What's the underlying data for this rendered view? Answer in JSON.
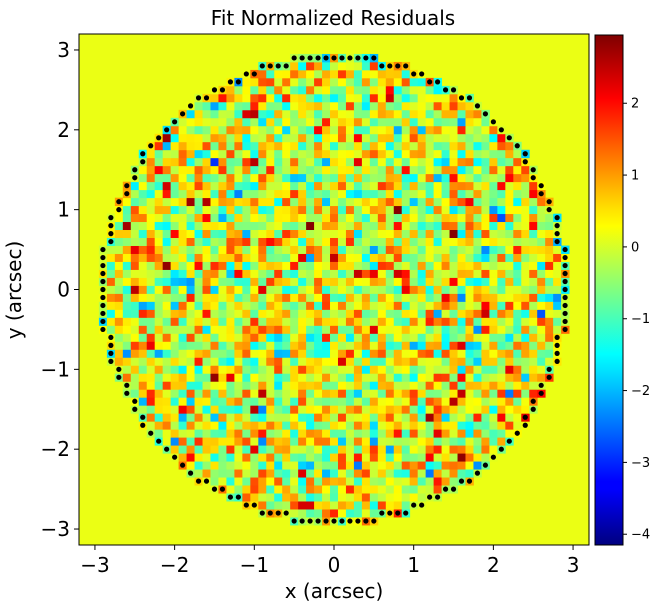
{
  "chart_data": {
    "type": "heatmap",
    "title": "Fit Normalized Residuals",
    "xlabel": "x (arcsec)",
    "ylabel": "y (arcsec)",
    "xlim": [
      -3.2,
      3.2
    ],
    "ylim": [
      -3.2,
      3.2
    ],
    "xticks": [
      -3,
      -2,
      -1,
      0,
      1,
      2,
      3
    ],
    "yticks": [
      -3,
      -2,
      -1,
      0,
      1,
      2,
      3
    ],
    "xtick_labels": [
      "−3",
      "−2",
      "−1",
      "0",
      "1",
      "2",
      "3"
    ],
    "ytick_labels": [
      "−3",
      "−2",
      "−1",
      "0",
      "1",
      "2",
      "3"
    ],
    "colormap": "jet",
    "background_value": 0.15,
    "mask_radius_arcsec": 2.95,
    "pixel_scale_arcsec": 0.1,
    "value_distribution": "approximately standard normal residuals, range about -4.1 to 2.9",
    "border_marker_color": "#000000",
    "colorbar": {
      "vmin": -4.15,
      "vmax": 2.95,
      "ticks": [
        2,
        1,
        0,
        -1,
        -2,
        -3,
        -4
      ],
      "tick_labels": [
        "2",
        "1",
        "0",
        "−1",
        "−2",
        "−3",
        "−4"
      ]
    },
    "grid": false
  }
}
